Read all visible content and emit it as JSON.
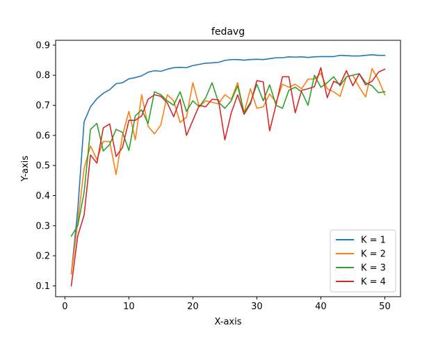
{
  "chart_data": {
    "type": "line",
    "title": "fedavg",
    "xlabel": "X-axis",
    "ylabel": "Y-axis",
    "xlim": [
      -1.45,
      52.45
    ],
    "ylim": [
      0.064,
      0.916
    ],
    "xticks": [
      0,
      10,
      20,
      30,
      40,
      50
    ],
    "xtick_labels": [
      "0",
      "10",
      "20",
      "30",
      "40",
      "50"
    ],
    "yticks": [
      0.1,
      0.2,
      0.3,
      0.4,
      0.5,
      0.6,
      0.7,
      0.8,
      0.9
    ],
    "ytick_labels": [
      "0.1",
      "0.2",
      "0.3",
      "0.4",
      "0.5",
      "0.6",
      "0.7",
      "0.8",
      "0.9"
    ],
    "grid": false,
    "legend_position": "bottom-right",
    "x": [
      1,
      2,
      3,
      4,
      5,
      6,
      7,
      8,
      9,
      10,
      11,
      12,
      13,
      14,
      15,
      16,
      17,
      18,
      19,
      20,
      21,
      22,
      23,
      24,
      25,
      26,
      27,
      28,
      29,
      30,
      31,
      32,
      33,
      34,
      35,
      36,
      37,
      38,
      39,
      40,
      41,
      42,
      43,
      44,
      45,
      46,
      47,
      48,
      49,
      50
    ],
    "series": [
      {
        "name": "K = 1",
        "color": "#1f77b4",
        "values": [
          0.14,
          0.35,
          0.645,
          0.695,
          0.722,
          0.74,
          0.752,
          0.772,
          0.775,
          0.788,
          0.792,
          0.798,
          0.81,
          0.815,
          0.813,
          0.82,
          0.825,
          0.826,
          0.825,
          0.832,
          0.836,
          0.84,
          0.841,
          0.843,
          0.849,
          0.852,
          0.852,
          0.85,
          0.852,
          0.853,
          0.852,
          0.855,
          0.858,
          0.858,
          0.861,
          0.86,
          0.861,
          0.859,
          0.861,
          0.862,
          0.862,
          0.862,
          0.866,
          0.865,
          0.864,
          0.864,
          0.866,
          0.868,
          0.866,
          0.866
        ]
      },
      {
        "name": "K = 2",
        "color": "#ff7f0e",
        "values": [
          0.14,
          0.31,
          0.49,
          0.565,
          0.52,
          0.58,
          0.58,
          0.47,
          0.6,
          0.68,
          0.585,
          0.735,
          0.63,
          0.605,
          0.635,
          0.735,
          0.715,
          0.643,
          0.66,
          0.775,
          0.695,
          0.715,
          0.71,
          0.705,
          0.735,
          0.72,
          0.775,
          0.675,
          0.755,
          0.69,
          0.695,
          0.738,
          0.71,
          0.77,
          0.76,
          0.77,
          0.755,
          0.787,
          0.787,
          0.807,
          0.755,
          0.745,
          0.73,
          0.795,
          0.8,
          0.76,
          0.728,
          0.822,
          0.785,
          0.735
        ]
      },
      {
        "name": "K = 3",
        "color": "#2ca02c",
        "values": [
          0.265,
          0.3,
          0.41,
          0.62,
          0.64,
          0.548,
          0.57,
          0.62,
          0.61,
          0.55,
          0.665,
          0.685,
          0.64,
          0.745,
          0.735,
          0.715,
          0.7,
          0.745,
          0.68,
          0.715,
          0.695,
          0.725,
          0.775,
          0.71,
          0.69,
          0.715,
          0.765,
          0.675,
          0.71,
          0.77,
          0.715,
          0.768,
          0.7,
          0.69,
          0.75,
          0.76,
          0.745,
          0.7,
          0.8,
          0.76,
          0.775,
          0.795,
          0.765,
          0.795,
          0.8,
          0.805,
          0.775,
          0.765,
          0.742,
          0.745
        ]
      },
      {
        "name": "K = 4",
        "color": "#d62728",
        "values": [
          0.1,
          0.265,
          0.335,
          0.535,
          0.508,
          0.625,
          0.638,
          0.53,
          0.56,
          0.65,
          0.65,
          0.665,
          0.72,
          0.735,
          0.73,
          0.708,
          0.662,
          0.72,
          0.6,
          0.65,
          0.7,
          0.695,
          0.72,
          0.718,
          0.585,
          0.675,
          0.735,
          0.67,
          0.705,
          0.782,
          0.778,
          0.615,
          0.702,
          0.795,
          0.795,
          0.675,
          0.75,
          0.755,
          0.762,
          0.825,
          0.725,
          0.78,
          0.77,
          0.815,
          0.765,
          0.805,
          0.768,
          0.78,
          0.81,
          0.82
        ]
      }
    ]
  }
}
